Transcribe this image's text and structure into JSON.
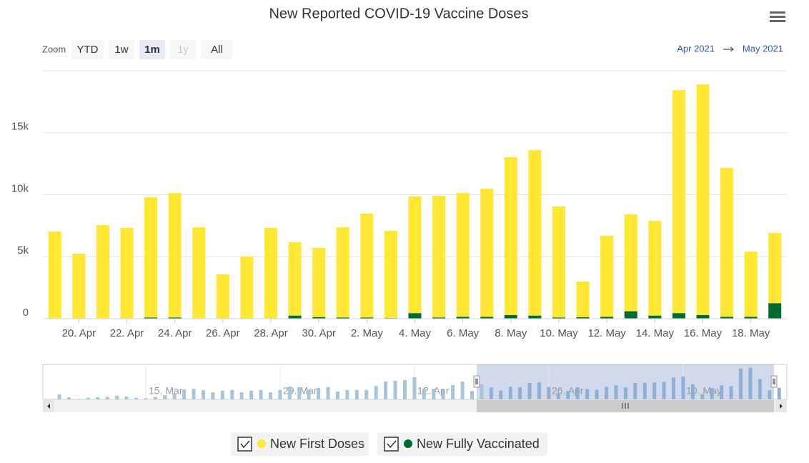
{
  "chart_data": {
    "type": "bar",
    "stacked": true,
    "title": "New Reported COVID-19 Vaccine Doses",
    "zoom_label": "Zoom",
    "zoom_buttons": [
      "YTD",
      "1w",
      "1m",
      "1y",
      "All"
    ],
    "zoom_selected": "1m",
    "zoom_disabled": "1y",
    "range_from": "Apr 2021",
    "range_to": "May 2021",
    "categories": [
      null,
      "20. Apr",
      null,
      "22. Apr",
      null,
      "24. Apr",
      null,
      "26. Apr",
      null,
      "28. Apr",
      null,
      "30. Apr",
      null,
      "2. May",
      null,
      "4. May",
      null,
      "6. May",
      null,
      "8. May",
      null,
      "10. May",
      null,
      "12. May",
      null,
      "14. May",
      null,
      "16. May",
      null,
      "18. May",
      null
    ],
    "series": [
      {
        "name": "New First Doses",
        "color": "#ffe733",
        "values": [
          7000,
          5210,
          7520,
          7290,
          9700,
          10040,
          7350,
          3550,
          4990,
          7290,
          5920,
          5590,
          7280,
          8370,
          7040,
          9410,
          9810,
          9990,
          10340,
          12730,
          13350,
          8950,
          2880,
          6540,
          7810,
          7650,
          17990,
          18600,
          12010,
          5270,
          5670
        ]
      },
      {
        "name": "New Fully Vaccinated",
        "color": "#006b31",
        "values": [
          30,
          30,
          30,
          30,
          100,
          100,
          30,
          20,
          20,
          30,
          250,
          120,
          100,
          100,
          50,
          450,
          100,
          150,
          150,
          300,
          250,
          100,
          120,
          150,
          600,
          250,
          450,
          300,
          150,
          150,
          1250
        ]
      }
    ],
    "ylim": [
      0,
      20000
    ],
    "yticks": [
      0,
      {
        "value": 5000,
        "label": "5k"
      },
      {
        "value": 10000,
        "label": "10k"
      },
      {
        "value": 15000,
        "label": "15k"
      }
    ],
    "grid": true,
    "navigator": {
      "labels": [
        "15. Mar",
        "29. Mar",
        "12. Apr",
        "26. Apr",
        "10. May"
      ],
      "color": "#a8c4d8",
      "values": [
        3000,
        1300,
        300,
        1000,
        1300,
        1500,
        2200,
        1700,
        1000,
        700,
        1500,
        2500,
        3500,
        5900,
        6300,
        5500,
        4200,
        5200,
        5600,
        4200,
        5200,
        5600,
        4200,
        5600,
        7700,
        7300,
        5600,
        6800,
        7300,
        4700,
        5600,
        5600,
        5600,
        8000,
        10700,
        11100,
        11500,
        13200,
        6500,
        6400,
        6000,
        8500,
        10600,
        5000,
        9000
      ]
    }
  }
}
